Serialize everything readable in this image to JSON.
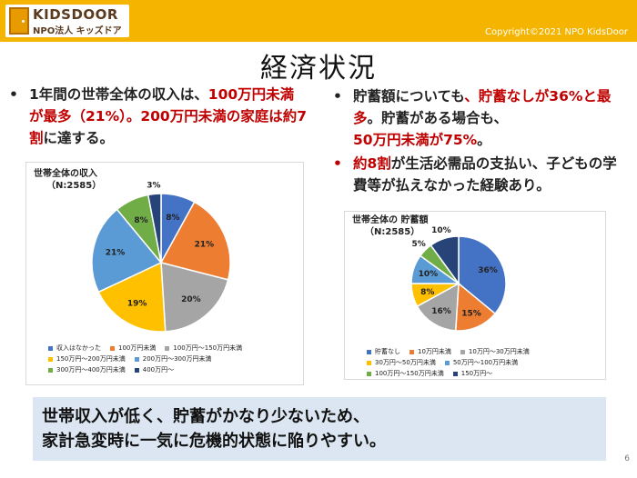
{
  "header": {
    "logo_main": "KIDSDOOR",
    "logo_sub": "NPO法人 キッズドア",
    "copyright": "Copyright©2021 NPO KidsDoor",
    "bg_color": "#F5B400"
  },
  "title": "経済状況",
  "bullets": {
    "b1": {
      "p1": "1年間の世帯全体の収入は、",
      "p2": "100万円未満が最多（21%）。200万円未満の家庭は約7割",
      "p3": "に達する。"
    },
    "b2": {
      "p1": "貯蓄額についても",
      "p2": "、貯蓄なしが36%と最多",
      "p3": "。貯蓄がある場合も、",
      "p4": "50万円未満が75%",
      "p5": "。"
    },
    "b3": {
      "p1": "約8割",
      "p2": "が生活必需品の支払い、子どもの学費等が払えなかった経験あり。"
    }
  },
  "chart_data": [
    {
      "type": "pie",
      "title": "世帯全体の収入",
      "subtitle": "（N:2585）",
      "series": [
        {
          "name": "収入はなかった",
          "value": 8,
          "label": "8%",
          "color": "#4472C4"
        },
        {
          "name": "100万円未満",
          "value": 21,
          "label": "21%",
          "color": "#ED7D31"
        },
        {
          "name": "100万円～150万円未満",
          "value": 20,
          "label": "20%",
          "color": "#A5A5A5"
        },
        {
          "name": "150万円～200万円未満",
          "value": 19,
          "label": "19%",
          "color": "#FFC000"
        },
        {
          "name": "200万円～300万円未満",
          "value": 21,
          "label": "21%",
          "color": "#5B9BD5"
        },
        {
          "name": "300万円～400万円未満",
          "value": 8,
          "label": "8%",
          "color": "#70AD47"
        },
        {
          "name": "400万円～",
          "value": 3,
          "label": "3%",
          "color": "#264478"
        }
      ],
      "legend": "bottom"
    },
    {
      "type": "pie",
      "title": "世帯全体の 貯蓄額",
      "subtitle": "（N:2585）",
      "series": [
        {
          "name": "貯蓄なし",
          "value": 36,
          "label": "36%",
          "color": "#4472C4"
        },
        {
          "name": "10万円未満",
          "value": 15,
          "label": "15%",
          "color": "#ED7D31"
        },
        {
          "name": "10万円～30万円未満",
          "value": 16,
          "label": "16%",
          "color": "#A5A5A5"
        },
        {
          "name": "30万円～50万円未満",
          "value": 8,
          "label": "8%",
          "color": "#FFC000"
        },
        {
          "name": "50万円～100万円未満",
          "value": 10,
          "label": "10%",
          "color": "#5B9BD5"
        },
        {
          "name": "100万円～150万円未満",
          "value": 5,
          "label": "5%",
          "color": "#70AD47"
        },
        {
          "name": "150万円～",
          "value": 10,
          "label": "10%",
          "color": "#264478"
        }
      ],
      "legend": "bottom"
    }
  ],
  "summary": {
    "line1": "世帯収入が低く、貯蓄がかなり少ないため、",
    "line2": "家計急変時に一気に危機的状態に陥りやすい。"
  },
  "page_number": "6"
}
